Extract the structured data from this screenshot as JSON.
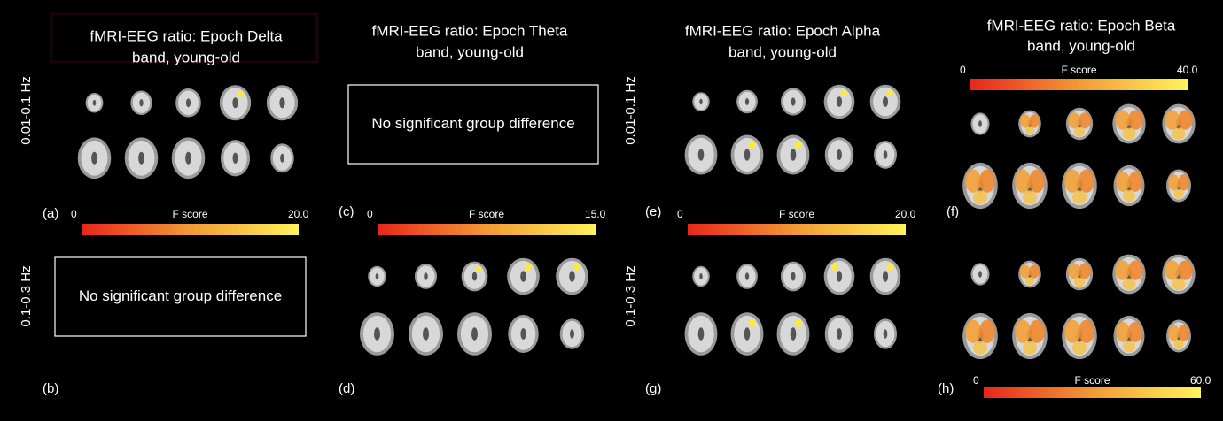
{
  "row_labels": [
    "0.01-0.1 Hz",
    "0.1-0.3 Hz"
  ],
  "columns": [
    {
      "title_lines": [
        "fMRI-EEG ratio: Epoch Delta",
        "band, young-old"
      ],
      "colorbars": [
        {
          "min": "0",
          "label": "F score",
          "max": "20.0"
        }
      ],
      "panels": [
        {
          "label": "(a)"
        },
        {
          "label": "(b)",
          "message": "No significant group difference"
        }
      ]
    },
    {
      "title_lines": [
        "fMRI-EEG ratio: Epoch Theta",
        "band, young-old"
      ],
      "colorbars": [
        {
          "min": "0",
          "label": "F score",
          "max": "15.0"
        }
      ],
      "panels": [
        {
          "label": "(c)",
          "message": "No significant group difference"
        },
        {
          "label": "(d)"
        }
      ]
    },
    {
      "title_lines": [
        "fMRI-EEG ratio: Epoch Alpha",
        "band, young-old"
      ],
      "colorbars": [
        {
          "min": "0",
          "label": "F score",
          "max": "20.0"
        }
      ],
      "panels": [
        {
          "label": "(e)"
        },
        {
          "label": "(g)"
        }
      ]
    },
    {
      "title_lines": [
        "fMRI-EEG ratio: Epoch Beta",
        "band, young-old"
      ],
      "colorbars": [
        {
          "min": "0",
          "label": "F score",
          "max": "40.0"
        },
        {
          "min": "0",
          "label": "F score",
          "max": "60.0"
        }
      ],
      "panels": [
        {
          "label": "(f)"
        },
        {
          "label": "(h)"
        }
      ]
    }
  ]
}
